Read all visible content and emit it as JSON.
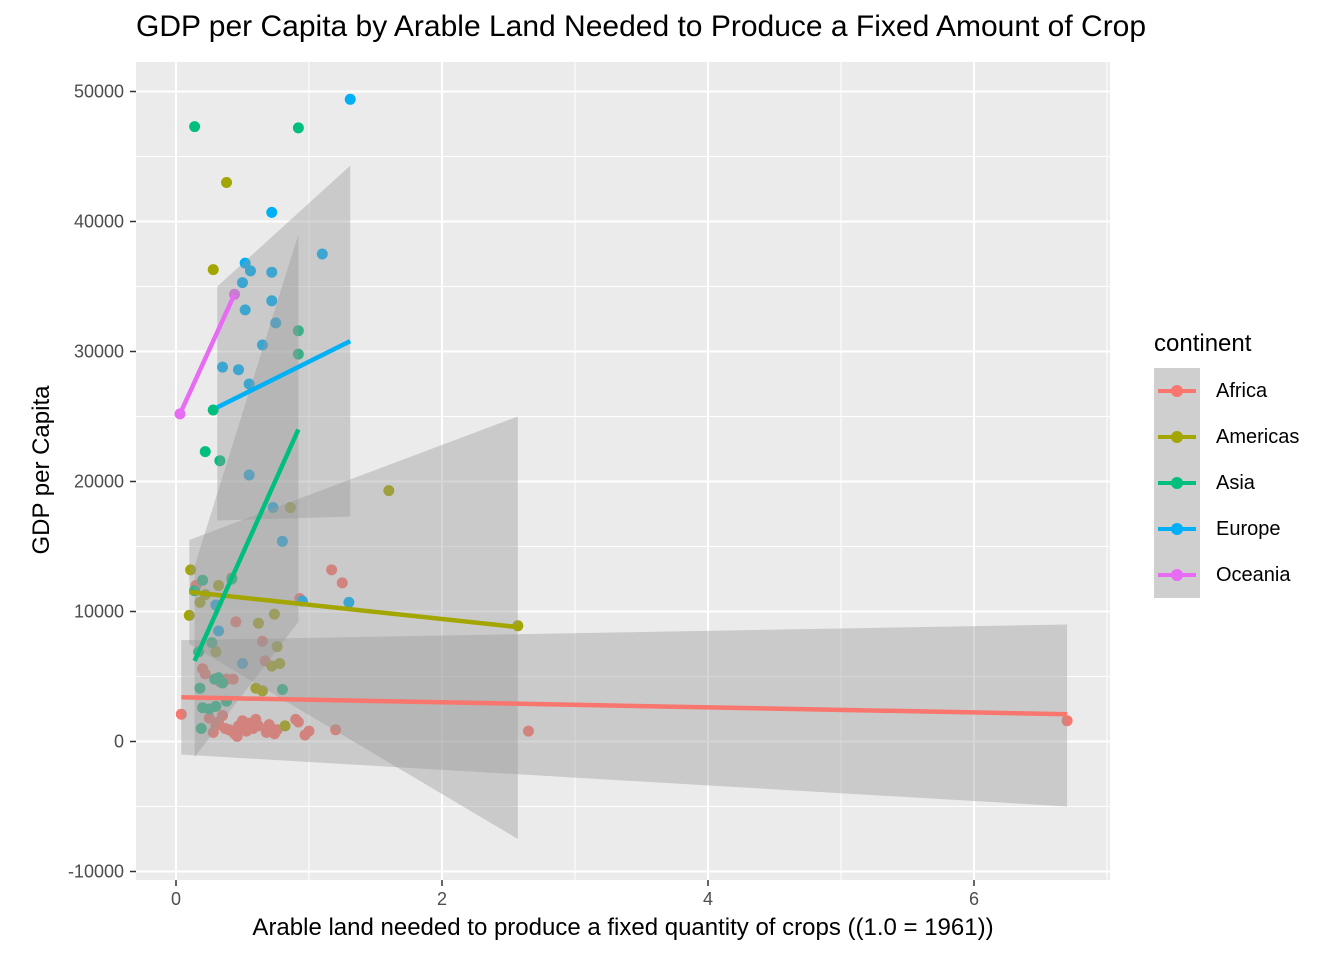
{
  "chart_data": {
    "type": "scatter",
    "title": "GDP per Capita by Arable Land Needed to Produce a Fixed Amount of Crop",
    "xlabel": "Arable land needed to produce a fixed quantity of crops ((1.0 = 1961))",
    "ylabel": "GDP per Capita",
    "xlim": [
      -0.3,
      7.0
    ],
    "ylim": [
      -10000,
      52000
    ],
    "x_ticks": [
      0,
      2,
      4,
      6
    ],
    "x_tick_labels": [
      "0",
      "2",
      "4",
      "6"
    ],
    "y_ticks": [
      -10000,
      0,
      10000,
      20000,
      30000,
      40000,
      50000
    ],
    "y_tick_labels": [
      "-10000",
      "0",
      "10000",
      "20000",
      "30000",
      "40000",
      "50000"
    ],
    "grid": true,
    "legend_title": "continent",
    "legend_position": "right",
    "series": [
      {
        "name": "Africa",
        "color": "#F8766D",
        "points": [
          [
            0.04,
            2100
          ],
          [
            0.15,
            12000
          ],
          [
            0.2,
            5600
          ],
          [
            0.22,
            5200
          ],
          [
            0.25,
            1800
          ],
          [
            0.28,
            700
          ],
          [
            0.3,
            1200
          ],
          [
            0.32,
            1500
          ],
          [
            0.33,
            4600
          ],
          [
            0.35,
            2000
          ],
          [
            0.37,
            1000
          ],
          [
            0.38,
            4800
          ],
          [
            0.4,
            900
          ],
          [
            0.42,
            12600
          ],
          [
            0.43,
            4800
          ],
          [
            0.44,
            600
          ],
          [
            0.45,
            9200
          ],
          [
            0.46,
            400
          ],
          [
            0.47,
            1200
          ],
          [
            0.5,
            1600
          ],
          [
            0.52,
            900
          ],
          [
            0.53,
            800
          ],
          [
            0.55,
            1400
          ],
          [
            0.58,
            1000
          ],
          [
            0.6,
            1700
          ],
          [
            0.62,
            1200
          ],
          [
            0.65,
            7700
          ],
          [
            0.67,
            6200
          ],
          [
            0.68,
            700
          ],
          [
            0.7,
            1300
          ],
          [
            0.72,
            1000
          ],
          [
            0.74,
            600
          ],
          [
            0.76,
            900
          ],
          [
            0.9,
            1700
          ],
          [
            0.92,
            1500
          ],
          [
            0.93,
            11000
          ],
          [
            0.97,
            500
          ],
          [
            1.0,
            800
          ],
          [
            1.17,
            13200
          ],
          [
            1.2,
            900
          ],
          [
            1.25,
            12200
          ],
          [
            2.65,
            800
          ],
          [
            6.7,
            1600
          ]
        ],
        "fit": [
          [
            0.04,
            3400
          ],
          [
            6.7,
            2100
          ]
        ],
        "ci": [
          [
            0.04,
            -1000,
            7800
          ],
          [
            6.7,
            -5000,
            9000
          ]
        ]
      },
      {
        "name": "Americas",
        "color": "#A3A500",
        "points": [
          [
            0.1,
            9700
          ],
          [
            0.11,
            13200
          ],
          [
            0.18,
            10700
          ],
          [
            0.22,
            11300
          ],
          [
            0.28,
            36300
          ],
          [
            0.3,
            6900
          ],
          [
            0.32,
            12000
          ],
          [
            0.38,
            43000
          ],
          [
            0.6,
            4100
          ],
          [
            0.62,
            9100
          ],
          [
            0.65,
            3900
          ],
          [
            0.72,
            5800
          ],
          [
            0.74,
            9800
          ],
          [
            0.76,
            7300
          ],
          [
            0.78,
            6000
          ],
          [
            0.82,
            1200
          ],
          [
            0.86,
            18000
          ],
          [
            1.6,
            19300
          ],
          [
            2.57,
            8900
          ]
        ],
        "fit": [
          [
            0.1,
            11500
          ],
          [
            2.57,
            8800
          ]
        ],
        "ci": [
          [
            0.1,
            7500,
            15500
          ],
          [
            2.57,
            -7500,
            25000
          ]
        ]
      },
      {
        "name": "Asia",
        "color": "#00BF7D",
        "points": [
          [
            0.14,
            47300
          ],
          [
            0.14,
            11600
          ],
          [
            0.17,
            6900
          ],
          [
            0.18,
            4100
          ],
          [
            0.19,
            1000
          ],
          [
            0.2,
            2600
          ],
          [
            0.2,
            12400
          ],
          [
            0.22,
            22300
          ],
          [
            0.25,
            2500
          ],
          [
            0.27,
            7600
          ],
          [
            0.28,
            25500
          ],
          [
            0.29,
            4800
          ],
          [
            0.3,
            2700
          ],
          [
            0.32,
            4900
          ],
          [
            0.33,
            21600
          ],
          [
            0.35,
            4500
          ],
          [
            0.38,
            3100
          ],
          [
            0.42,
            12500
          ],
          [
            0.8,
            4000
          ],
          [
            0.92,
            47200
          ],
          [
            0.92,
            31600
          ],
          [
            0.92,
            29800
          ]
        ],
        "fit": [
          [
            0.14,
            6200
          ],
          [
            0.92,
            24000
          ]
        ],
        "ci": [
          [
            0.14,
            -1200,
            13500
          ],
          [
            0.92,
            9200,
            39000
          ]
        ]
      },
      {
        "name": "Europe",
        "color": "#00B0F6",
        "points": [
          [
            0.3,
            10500
          ],
          [
            0.32,
            8500
          ],
          [
            0.35,
            28800
          ],
          [
            0.47,
            28600
          ],
          [
            0.5,
            6000
          ],
          [
            0.5,
            35300
          ],
          [
            0.52,
            33200
          ],
          [
            0.52,
            36800
          ],
          [
            0.55,
            20500
          ],
          [
            0.55,
            27500
          ],
          [
            0.56,
            36200
          ],
          [
            0.65,
            30500
          ],
          [
            0.72,
            40700
          ],
          [
            0.72,
            36100
          ],
          [
            0.72,
            33900
          ],
          [
            0.73,
            18000
          ],
          [
            0.75,
            32200
          ],
          [
            0.8,
            15400
          ],
          [
            0.95,
            10800
          ],
          [
            1.1,
            37500
          ],
          [
            1.3,
            10700
          ],
          [
            1.31,
            49400
          ]
        ],
        "fit": [
          [
            0.31,
            25700
          ],
          [
            1.31,
            30800
          ]
        ],
        "ci": [
          [
            0.31,
            17000,
            35000
          ],
          [
            1.31,
            17300,
            44300
          ]
        ]
      },
      {
        "name": "Oceania",
        "color": "#E76BF3",
        "points": [
          [
            0.03,
            25200
          ],
          [
            0.44,
            34400
          ]
        ],
        "fit": [
          [
            0.03,
            25200
          ],
          [
            0.44,
            34400
          ]
        ]
      }
    ]
  }
}
